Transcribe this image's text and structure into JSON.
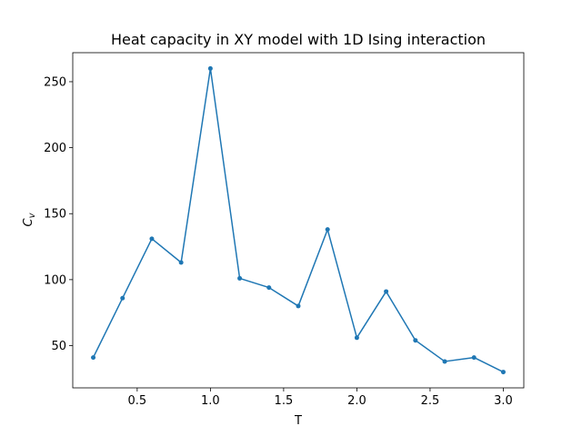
{
  "chart_data": {
    "type": "line",
    "title": "Heat capacity in XY model with 1D Ising interaction",
    "xlabel": "T",
    "ylabel_main": "C",
    "ylabel_sub": "v",
    "xlim": [
      0.06,
      3.14
    ],
    "ylim": [
      18,
      272
    ],
    "xticks": [
      0.5,
      1.0,
      1.5,
      2.0,
      2.5,
      3.0
    ],
    "xtick_labels": [
      "0.5",
      "1.0",
      "1.5",
      "2.0",
      "2.5",
      "3.0"
    ],
    "yticks": [
      50,
      100,
      150,
      200,
      250
    ],
    "ytick_labels": [
      "50",
      "100",
      "150",
      "200",
      "250"
    ],
    "grid": false,
    "series": [
      {
        "color": "#1f77b4",
        "marker": "circle",
        "x": [
          0.2,
          0.4,
          0.6,
          0.8,
          1.0,
          1.2,
          1.4,
          1.6,
          1.8,
          2.0,
          2.2,
          2.4,
          2.6,
          2.8,
          3.0
        ],
        "y": [
          41,
          86,
          131,
          113,
          260,
          101,
          94,
          80,
          138,
          56,
          91,
          54,
          38,
          41,
          30
        ]
      }
    ]
  }
}
